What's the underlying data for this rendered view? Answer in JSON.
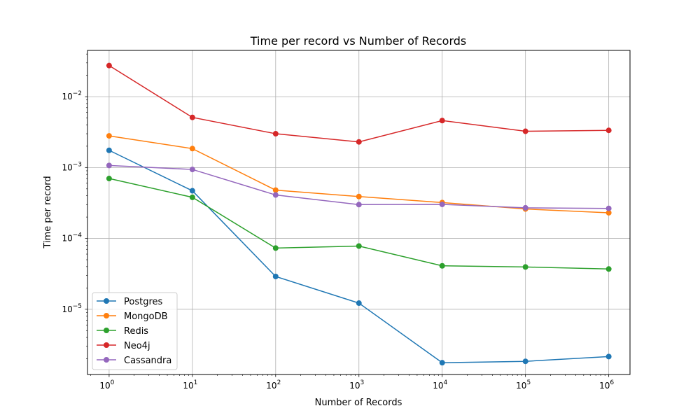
{
  "chart_data": {
    "type": "line",
    "title": "Time per record vs Number of Records",
    "xlabel": "Number of Records",
    "ylabel": "Time per record",
    "x_scale": "log",
    "y_scale": "log",
    "x": [
      1,
      10,
      100,
      1000,
      10000,
      100000,
      1000000
    ],
    "xlim": [
      0.55,
      1800000
    ],
    "ylim": [
      1.2e-06,
      0.045
    ],
    "x_ticks": [
      {
        "base": "10",
        "exp": "0"
      },
      {
        "base": "10",
        "exp": "1"
      },
      {
        "base": "10",
        "exp": "2"
      },
      {
        "base": "10",
        "exp": "3"
      },
      {
        "base": "10",
        "exp": "4"
      },
      {
        "base": "10",
        "exp": "5"
      },
      {
        "base": "10",
        "exp": "6"
      }
    ],
    "y_ticks": [
      {
        "value": 1e-05,
        "base": "10",
        "exp": "−5"
      },
      {
        "value": 0.0001,
        "base": "10",
        "exp": "−4"
      },
      {
        "value": 0.001,
        "base": "10",
        "exp": "−3"
      },
      {
        "value": 0.01,
        "base": "10",
        "exp": "−2"
      }
    ],
    "grid": true,
    "legend_position": "lower-left",
    "series": [
      {
        "name": "Postgres",
        "color": "#1f77b4",
        "values": [
          0.00175,
          0.00047,
          2.9e-05,
          1.22e-05,
          1.76e-06,
          1.84e-06,
          2.15e-06
        ]
      },
      {
        "name": "MongoDB",
        "color": "#ff7f0e",
        "values": [
          0.0028,
          0.00185,
          0.00048,
          0.00039,
          0.00032,
          0.00026,
          0.00023
        ]
      },
      {
        "name": "Redis",
        "color": "#2ca02c",
        "values": [
          0.0007,
          0.00038,
          7.3e-05,
          7.8e-05,
          4.1e-05,
          3.95e-05,
          3.7e-05
        ]
      },
      {
        "name": "Neo4j",
        "color": "#d62728",
        "values": [
          0.0275,
          0.0051,
          0.003,
          0.0023,
          0.0046,
          0.00325,
          0.00335
        ]
      },
      {
        "name": "Cassandra",
        "color": "#9467bd",
        "values": [
          0.00107,
          0.00094,
          0.00041,
          0.0003,
          0.000302,
          0.00027,
          0.000265
        ]
      }
    ]
  }
}
